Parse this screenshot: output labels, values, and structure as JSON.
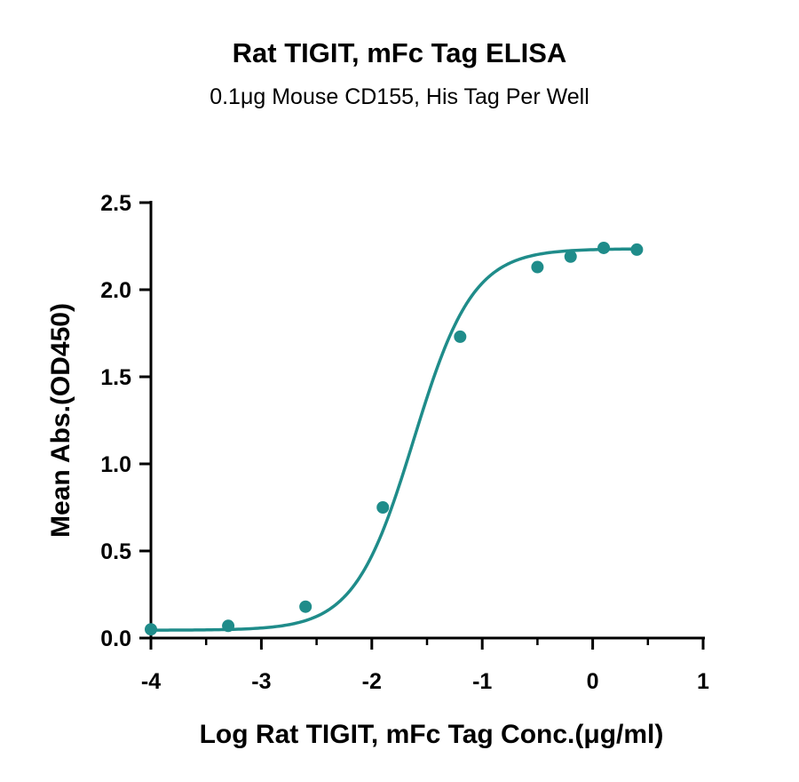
{
  "chart_data": {
    "type": "scatter",
    "title": "Rat TIGIT, mFc Tag ELISA",
    "subtitle": "0.1μg Mouse CD155, His Tag Per Well",
    "xlabel": "Log Rat TIGIT, mFc Tag Conc.(μg/ml)",
    "ylabel": "Mean Abs.(OD450)",
    "xlim": [
      -4,
      1
    ],
    "ylim": [
      0,
      2.5
    ],
    "x_ticks": [
      -4,
      -3,
      -2,
      -1,
      0,
      1
    ],
    "x_tick_labels": [
      "-4",
      "-3",
      "-2",
      "-1",
      "0",
      "1"
    ],
    "y_ticks": [
      0,
      0.5,
      1.0,
      1.5,
      2.0,
      2.5
    ],
    "y_tick_labels": [
      "0.0",
      "0.5",
      "1.0",
      "1.5",
      "2.0",
      "2.5"
    ],
    "color": "#1f8c8a",
    "grid": false,
    "series": [
      {
        "x": [
          -4.0,
          -3.3,
          -2.6,
          -1.9,
          -1.2,
          -0.5,
          -0.2,
          0.1,
          0.4
        ],
        "y": [
          0.05,
          0.07,
          0.18,
          0.75,
          1.73,
          2.13,
          2.19,
          2.24,
          2.23
        ]
      }
    ],
    "fit": {
      "type": "4PL",
      "bottom": 0.045,
      "top": 2.235,
      "logEC50": -1.62,
      "hill": 1.62
    }
  }
}
